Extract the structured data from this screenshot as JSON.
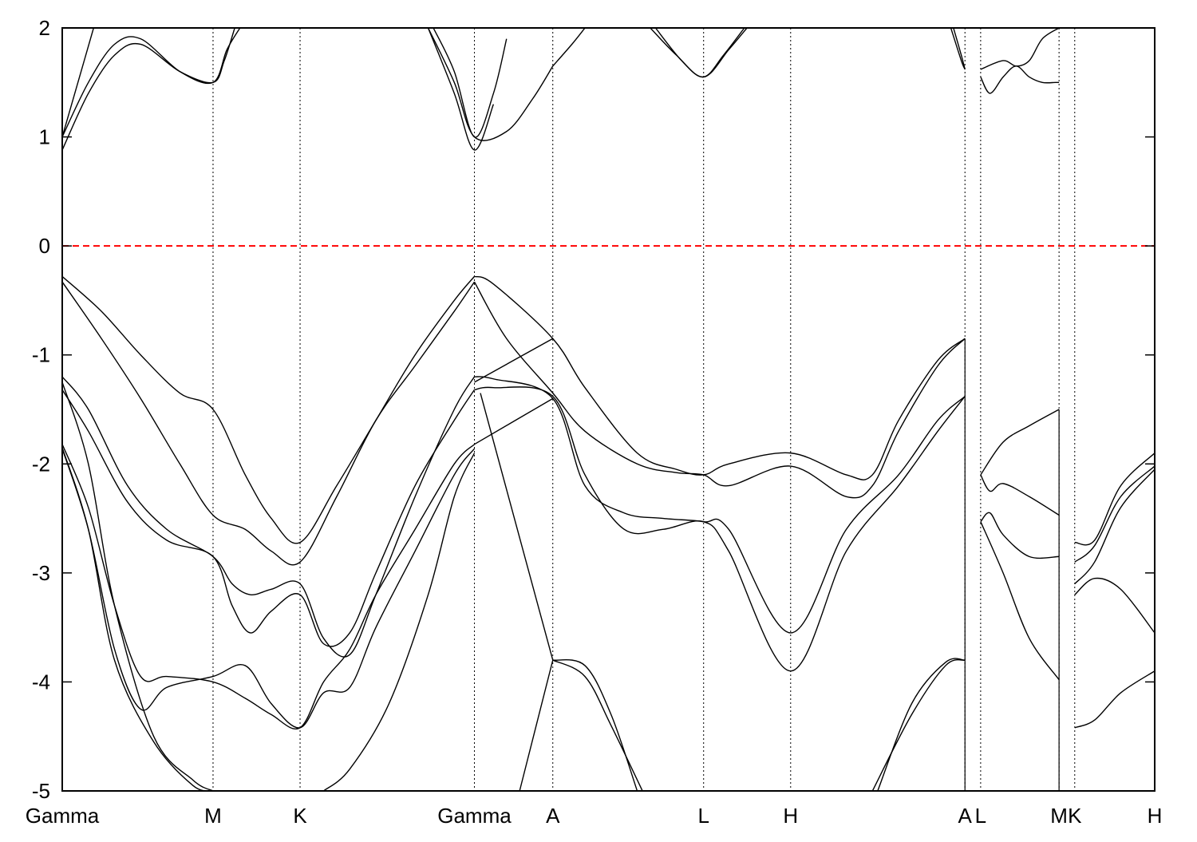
{
  "chart_data": {
    "type": "line",
    "title": "",
    "xlabel": "",
    "ylabel": "",
    "ylim": [
      -5,
      2
    ],
    "y_ticks": [
      "2",
      "1",
      "0",
      "-1",
      "-2",
      "-3",
      "-4",
      "-5"
    ],
    "x_ticks": [
      "Gamma",
      "M",
      "K",
      "Gamma",
      "A",
      "L",
      "H",
      "A",
      "L",
      "M",
      "K",
      "H"
    ],
    "x_tick_positions": [
      0,
      0.577,
      0.91,
      1.577,
      1.877,
      2.454,
      2.787,
      3.454,
      3.514,
      3.814,
      3.874,
      4.18
    ],
    "xlim": [
      0,
      4.18
    ],
    "fermi_level": {
      "value": 0,
      "color": "#ff0000",
      "style": "dashed"
    },
    "grid": "vertical dotted lines at high-symmetry points",
    "line_color": "#000000",
    "band_segments": [
      {
        "segment": "Gamma-M-K-Gamma",
        "bands": [
          {
            "x": [
              0,
              0.15,
              0.3,
              0.45,
              0.577,
              0.7,
              0.8,
              0.91,
              1.05,
              1.2,
              1.35,
              1.5,
              1.577
            ],
            "y": [
              -0.28,
              -0.6,
              -1.0,
              -1.35,
              -1.5,
              -2.1,
              -2.5,
              -2.72,
              -2.2,
              -1.6,
              -1.0,
              -0.5,
              -0.28
            ]
          },
          {
            "x": [
              0,
              0.15,
              0.3,
              0.45,
              0.577,
              0.7,
              0.8,
              0.91,
              1.05,
              1.2,
              1.35,
              1.5,
              1.577
            ],
            "y": [
              -0.33,
              -0.85,
              -1.4,
              -2.0,
              -2.47,
              -2.6,
              -2.8,
              -2.9,
              -2.3,
              -1.6,
              -1.1,
              -0.6,
              -0.33
            ]
          },
          {
            "x": [
              0,
              0.1,
              0.25,
              0.4,
              0.577,
              0.65,
              0.72,
              0.8,
              0.91,
              1.0,
              1.1,
              1.2,
              1.35,
              1.5,
              1.577
            ],
            "y": [
              -1.2,
              -1.5,
              -2.2,
              -2.6,
              -2.85,
              -3.1,
              -3.2,
              -3.15,
              -3.1,
              -3.6,
              -3.75,
              -3.2,
              -2.3,
              -1.5,
              -1.2
            ]
          },
          {
            "x": [
              0,
              0.1,
              0.25,
              0.4,
              0.577,
              0.65,
              0.72,
              0.8,
              0.91,
              1.0,
              1.1,
              1.2,
              1.35,
              1.5,
              1.577
            ],
            "y": [
              -1.32,
              -1.7,
              -2.35,
              -2.7,
              -2.85,
              -3.3,
              -3.55,
              -3.35,
              -3.2,
              -3.65,
              -3.55,
              -3.0,
              -2.2,
              -1.6,
              -1.32
            ]
          },
          {
            "x": [
              0,
              0.1,
              0.2,
              0.3,
              0.4,
              0.577,
              0.7,
              0.8,
              0.91,
              1.0,
              1.1,
              1.2,
              1.35,
              1.5,
              1.577
            ],
            "y": [
              -1.82,
              -2.4,
              -3.3,
              -3.95,
              -3.95,
              -4.0,
              -4.15,
              -4.3,
              -4.42,
              -4.0,
              -3.7,
              -3.2,
              -2.6,
              -2.0,
              -1.82
            ]
          },
          {
            "x": [
              0,
              0.1,
              0.2,
              0.3,
              0.4,
              0.577,
              0.7,
              0.8,
              0.91,
              1.0,
              1.1,
              1.2,
              1.35,
              1.5,
              1.577
            ],
            "y": [
              -1.86,
              -2.6,
              -3.7,
              -4.25,
              -4.05,
              -3.95,
              -3.85,
              -4.2,
              -4.42,
              -4.1,
              -4.05,
              -3.5,
              -2.8,
              -2.1,
              -1.86
            ]
          },
          {
            "x": [
              0,
              0.1,
              0.2,
              0.35,
              0.5,
              0.577
            ],
            "y": [
              -1.25,
              -2.0,
              -3.3,
              -4.5,
              -4.9,
              -5.0
            ]
          },
          {
            "x": [
              0,
              0.1,
              0.2,
              0.35,
              0.5,
              0.577
            ],
            "y": [
              -1.85,
              -2.6,
              -3.8,
              -4.55,
              -4.95,
              -5.0
            ]
          },
          {
            "x": [
              1.0,
              1.1,
              1.25,
              1.4,
              1.5,
              1.577
            ],
            "y": [
              -5.0,
              -4.8,
              -4.2,
              -3.2,
              -2.3,
              -1.9
            ]
          },
          {
            "x": [
              0,
              0.1,
              0.2,
              0.3,
              0.45,
              0.577,
              0.62,
              0.66
            ],
            "y": [
              0.88,
              1.4,
              1.75,
              1.85,
              1.6,
              1.5,
              1.7,
              2.0
            ]
          },
          {
            "x": [
              0,
              0.1,
              0.2,
              0.3,
              0.45,
              0.577,
              0.63,
              0.68
            ],
            "y": [
              1.0,
              1.5,
              1.85,
              1.9,
              1.6,
              1.5,
              1.8,
              2.0
            ]
          },
          {
            "x": [
              0,
              0.06,
              0.12
            ],
            "y": [
              1.0,
              1.5,
              2.0
            ]
          },
          {
            "x": [
              1.4,
              1.5,
              1.577,
              1.65
            ],
            "y": [
              2.0,
              1.4,
              0.88,
              1.3
            ]
          },
          {
            "x": [
              1.4,
              1.5,
              1.577,
              1.7,
              1.8,
              1.877
            ],
            "y": [
              2.0,
              1.5,
              1.0,
              1.05,
              1.35,
              1.65
            ]
          },
          {
            "x": [
              1.42,
              1.5,
              1.577,
              1.65,
              1.7
            ],
            "y": [
              2.0,
              1.6,
              1.0,
              1.4,
              1.9
            ]
          }
        ]
      },
      {
        "segment": "Gamma-A-L-H-A",
        "bands": [
          {
            "x": [
              1.577,
              1.65,
              1.877,
              2.0,
              2.2,
              2.35,
              2.454,
              2.55,
              2.787,
              3.0,
              3.1,
              3.2,
              3.35,
              3.454
            ],
            "y": [
              -0.28,
              -0.35,
              -0.85,
              -1.3,
              -1.9,
              -2.05,
              -2.1,
              -2.0,
              -1.9,
              -2.1,
              -2.1,
              -1.6,
              -1.05,
              -0.85
            ]
          },
          {
            "x": [
              1.577,
              1.7,
              1.877,
              2.0,
              2.2,
              2.35,
              2.454,
              2.55,
              2.787,
              3.0,
              3.1,
              3.2,
              3.35,
              3.454
            ],
            "y": [
              -0.33,
              -0.85,
              -1.35,
              -1.7,
              -2.0,
              -2.08,
              -2.1,
              -2.2,
              -2.02,
              -2.3,
              -2.2,
              -1.7,
              -1.1,
              -0.85
            ]
          },
          {
            "x": [
              1.577,
              1.65,
              1.877,
              2.0,
              2.15,
              2.3,
              2.454,
              2.55,
              2.787,
              3.0,
              3.2,
              3.35,
              3.454
            ],
            "y": [
              -1.2,
              -1.22,
              -1.4,
              -2.2,
              -2.45,
              -2.5,
              -2.53,
              -2.6,
              -3.55,
              -2.6,
              -2.1,
              -1.6,
              -1.38
            ]
          },
          {
            "x": [
              1.577,
              1.65,
              1.877,
              2.0,
              2.15,
              2.3,
              2.454,
              2.55,
              2.787,
              3.0,
              3.2,
              3.35,
              3.454
            ],
            "y": [
              -1.32,
              -1.3,
              -1.38,
              -2.1,
              -2.6,
              -2.6,
              -2.53,
              -2.8,
              -3.9,
              -2.8,
              -2.2,
              -1.7,
              -1.38
            ]
          },
          {
            "x": [
              1.577,
              1.877
            ],
            "y": [
              -1.82,
              -1.4
            ]
          },
          {
            "x": [
              1.577,
              1.877
            ],
            "y": [
              -1.25,
              -0.85
            ]
          },
          {
            "x": [
              1.6,
              1.877
            ],
            "y": [
              -1.35,
              -3.8
            ]
          },
          {
            "x": [
              1.75,
              1.877
            ],
            "y": [
              -5.0,
              -3.8
            ]
          },
          {
            "x": [
              1.877,
              2.0,
              2.1,
              2.22
            ],
            "y": [
              -3.8,
              -3.95,
              -4.4,
              -5.0
            ]
          },
          {
            "x": [
              1.877,
              2.0,
              2.1,
              2.2
            ],
            "y": [
              -3.8,
              -3.85,
              -4.3,
              -5.0
            ]
          },
          {
            "x": [
              3.1,
              3.25,
              3.38,
              3.454
            ],
            "y": [
              -5.0,
              -4.3,
              -3.85,
              -3.8
            ]
          },
          {
            "x": [
              3.12,
              3.25,
              3.38,
              3.454
            ],
            "y": [
              -5.0,
              -4.2,
              -3.82,
              -3.8
            ]
          },
          {
            "x": [
              1.877,
              1.95,
              2.0
            ],
            "y": [
              1.65,
              1.85,
              2.0
            ]
          },
          {
            "x": [
              2.25,
              2.35,
              2.454,
              2.55,
              2.62
            ],
            "y": [
              2.0,
              1.75,
              1.55,
              1.8,
              2.0
            ]
          },
          {
            "x": [
              2.27,
              2.37,
              2.454,
              2.53,
              2.61
            ],
            "y": [
              2.0,
              1.7,
              1.55,
              1.75,
              2.0
            ]
          },
          {
            "x": [
              3.4,
              3.44,
              3.454
            ],
            "y": [
              2.0,
              1.7,
              1.62
            ]
          },
          {
            "x": [
              3.41,
              3.44,
              3.454
            ],
            "y": [
              2.0,
              1.75,
              1.62
            ]
          }
        ]
      },
      {
        "segment": "L-M",
        "bands": [
          {
            "x": [
              3.514,
              3.6,
              3.7,
              3.814
            ],
            "y": [
              -2.1,
              -1.8,
              -1.65,
              -1.5
            ]
          },
          {
            "x": [
              3.514,
              3.55,
              3.6,
              3.7,
              3.814
            ],
            "y": [
              -2.1,
              -2.25,
              -2.18,
              -2.3,
              -2.47
            ]
          },
          {
            "x": [
              3.514,
              3.55,
              3.6,
              3.7,
              3.814
            ],
            "y": [
              -2.53,
              -2.45,
              -2.65,
              -2.85,
              -2.85
            ]
          },
          {
            "x": [
              3.514,
              3.6,
              3.7,
              3.814
            ],
            "y": [
              -2.53,
              -3.0,
              -3.6,
              -3.98
            ]
          },
          {
            "x": [
              3.514,
              3.55,
              3.6,
              3.65,
              3.7,
              3.75,
              3.8,
              3.814
            ],
            "y": [
              1.55,
              1.4,
              1.55,
              1.65,
              1.55,
              1.5,
              1.5,
              1.5
            ]
          },
          {
            "x": [
              3.514,
              3.6,
              3.65,
              3.7,
              3.75,
              3.814
            ],
            "y": [
              1.62,
              1.7,
              1.65,
              1.7,
              1.9,
              2.0
            ]
          }
        ]
      },
      {
        "segment": "K-H",
        "bands": [
          {
            "x": [
              3.874,
              3.95,
              4.05,
              4.18
            ],
            "y": [
              -2.72,
              -2.7,
              -2.2,
              -1.9
            ]
          },
          {
            "x": [
              3.874,
              3.95,
              4.05,
              4.18
            ],
            "y": [
              -2.9,
              -2.75,
              -2.3,
              -2.02
            ]
          },
          {
            "x": [
              3.874,
              3.95,
              4.05,
              4.18
            ],
            "y": [
              -3.1,
              -2.9,
              -2.4,
              -2.05
            ]
          },
          {
            "x": [
              3.874,
              3.95,
              4.05,
              4.18
            ],
            "y": [
              -3.2,
              -3.05,
              -3.15,
              -3.55
            ]
          },
          {
            "x": [
              3.874,
              3.95,
              4.05,
              4.18
            ],
            "y": [
              -4.42,
              -4.35,
              -4.1,
              -3.9
            ]
          }
        ]
      }
    ]
  }
}
